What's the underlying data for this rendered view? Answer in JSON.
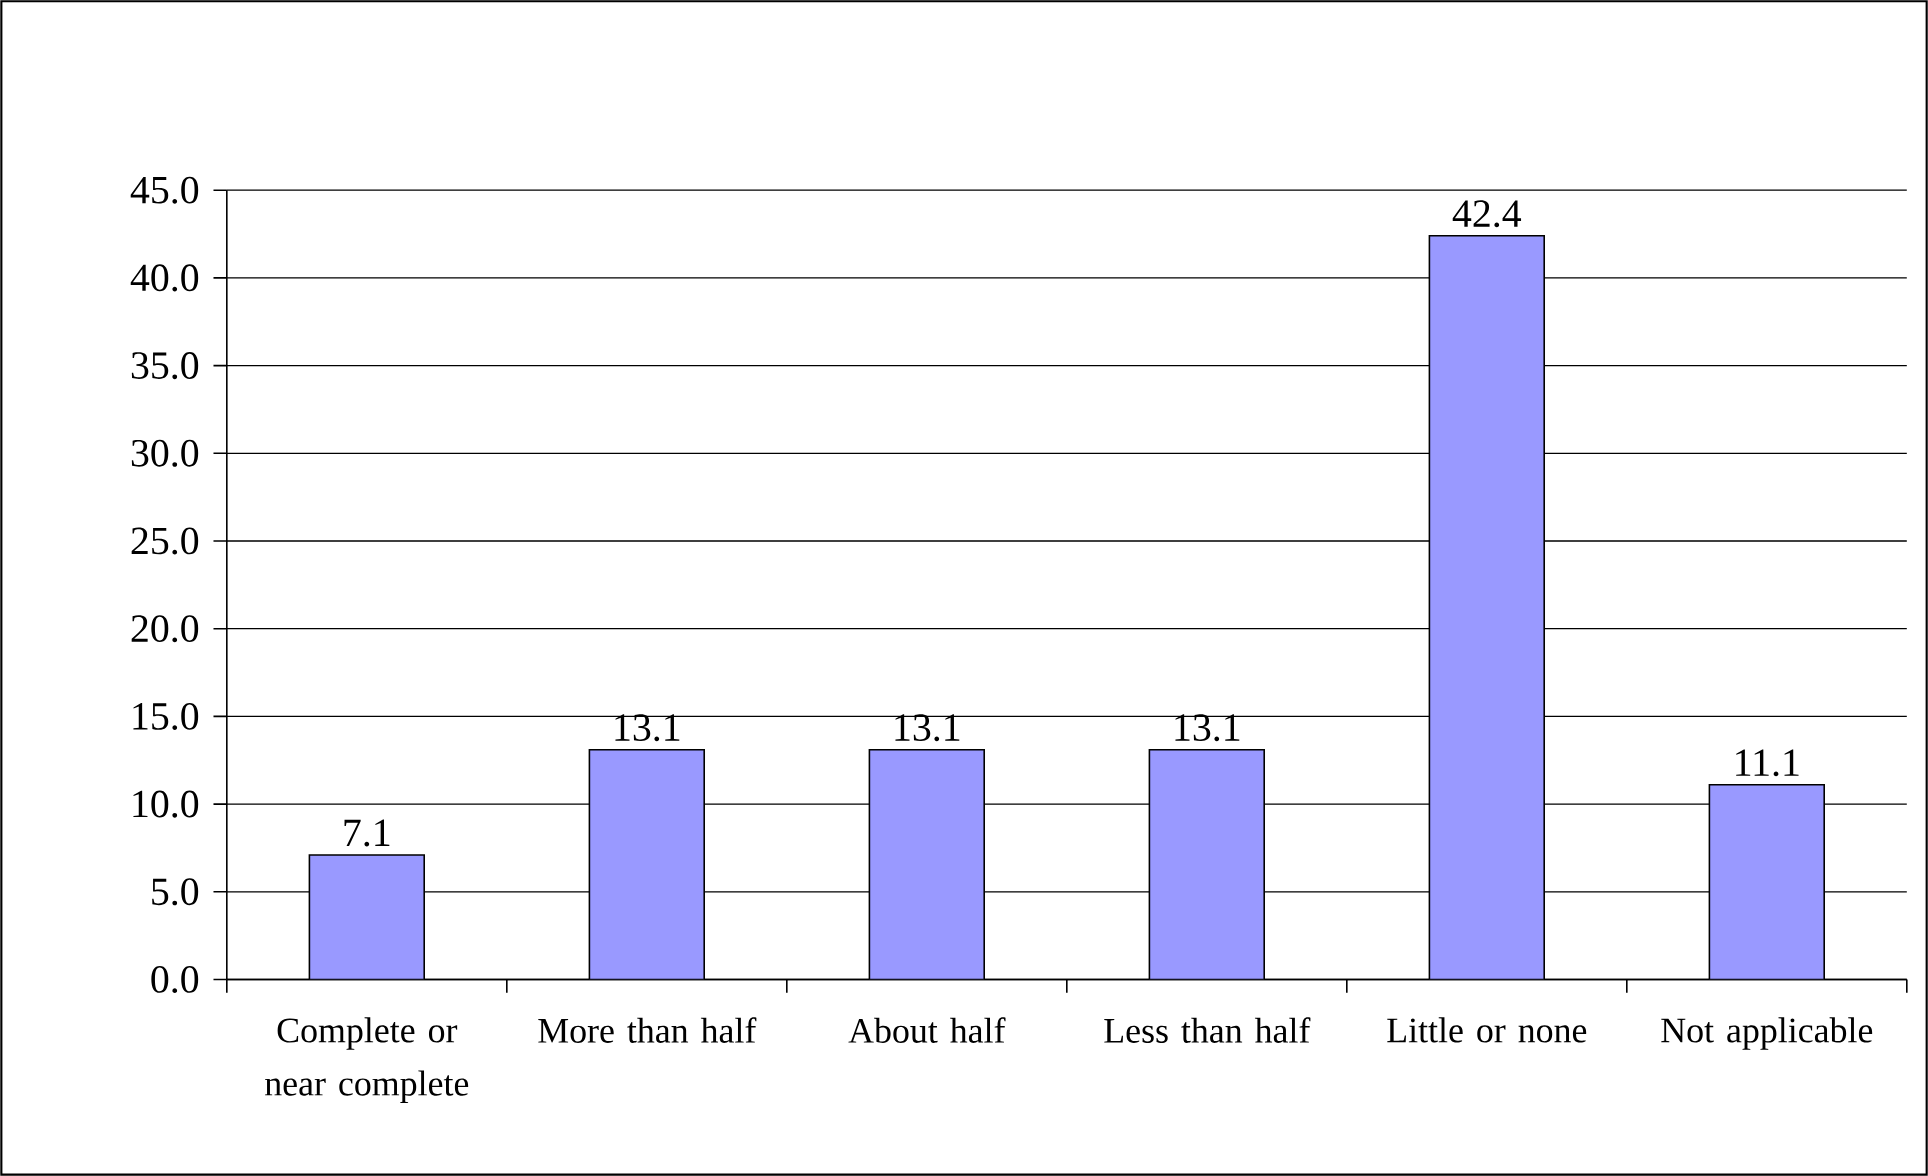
{
  "chart_data": {
    "type": "bar",
    "categories": [
      "Complete or near complete",
      "More than half",
      "About half",
      "Less than half",
      "Little or none",
      "Not applicable"
    ],
    "values": [
      7.1,
      13.1,
      13.1,
      13.1,
      42.4,
      11.1
    ],
    "color": "#9999ff",
    "ylim": [
      0,
      45
    ],
    "yticks": [
      {
        "value": 0,
        "label": "0.0"
      },
      {
        "value": 5,
        "label": "5.0"
      },
      {
        "value": 10,
        "label": "10.0"
      },
      {
        "value": 15,
        "label": "15.0"
      },
      {
        "value": 20,
        "label": "20.0"
      },
      {
        "value": 25,
        "label": "25.0"
      },
      {
        "value": 30,
        "label": "30.0"
      },
      {
        "value": 35,
        "label": "35.0"
      },
      {
        "value": 40,
        "label": "40.0"
      },
      {
        "value": 45,
        "label": "45.0"
      }
    ],
    "grid": "y",
    "data_labels": true
  }
}
